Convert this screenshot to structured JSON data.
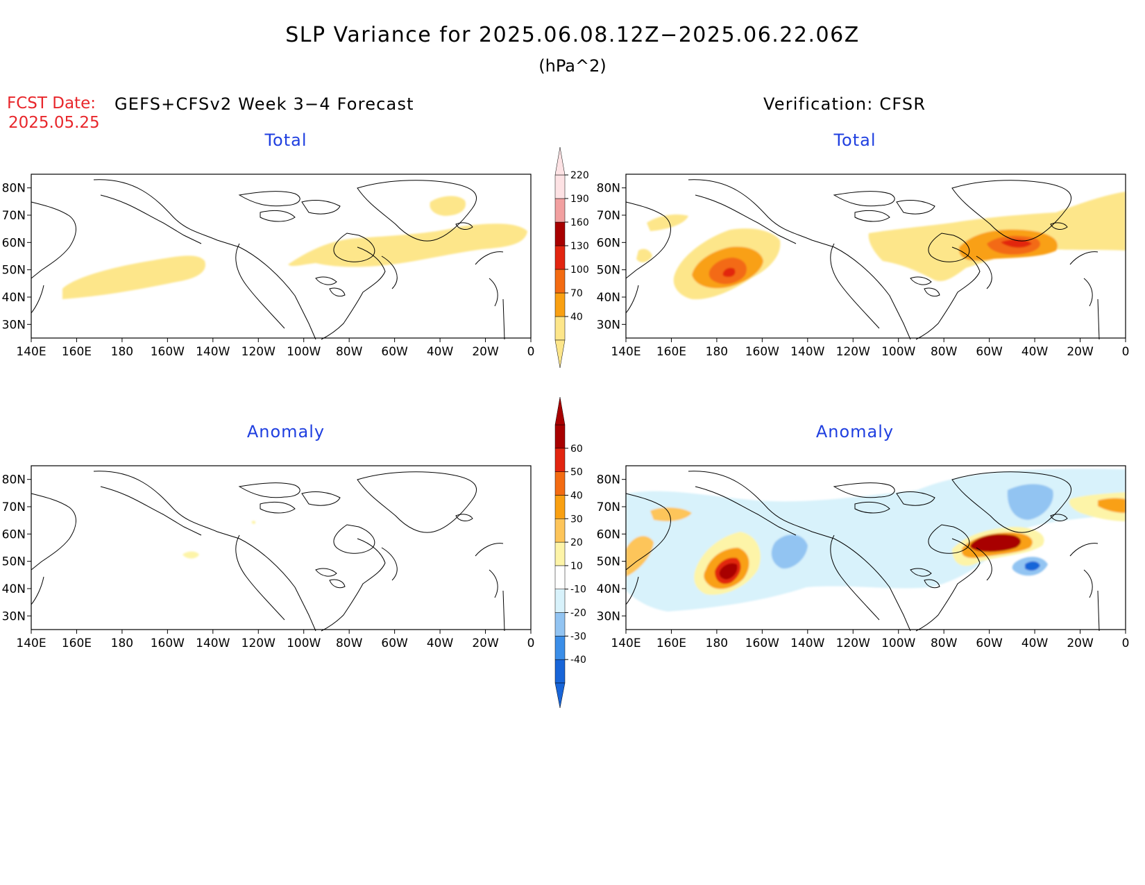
{
  "title": "SLP Variance for 2025.06.08.12Z−2025.06.22.06Z",
  "units": "(hPa^2)",
  "fcst_date_label": "FCST Date:",
  "fcst_date_value": "2025.05.25",
  "left_header": "GEFS+CFSv2 Week 3−4 Forecast",
  "right_header": "Verification: CFSR",
  "panels": [
    {
      "id": "fcst-total",
      "label": "Total"
    },
    {
      "id": "verif-total",
      "label": "Total"
    },
    {
      "id": "fcst-anomaly",
      "label": "Anomaly"
    },
    {
      "id": "verif-anomaly",
      "label": "Anomaly"
    }
  ],
  "lon_ticks": [
    "140E",
    "160E",
    "180",
    "160W",
    "140W",
    "120W",
    "100W",
    "80W",
    "60W",
    "40W",
    "20W",
    "0"
  ],
  "lat_ticks": [
    "80N",
    "70N",
    "60N",
    "50N",
    "40N",
    "30N"
  ],
  "map_extent": {
    "lon_min": 140,
    "lon_max": 360,
    "lat_min": 25,
    "lat_max": 85
  },
  "total_colorbar": {
    "levels": [
      "40",
      "70",
      "100",
      "130",
      "160",
      "190",
      "220"
    ],
    "colors": [
      "#fde68a",
      "#f9a012",
      "#f36b12",
      "#e22510",
      "#a80000",
      "#f2a0a0",
      "#fde2e4"
    ]
  },
  "anomaly_colorbar": {
    "levels": [
      "-40",
      "-30",
      "-20",
      "-10",
      "10",
      "20",
      "30",
      "40",
      "50",
      "60"
    ],
    "colors": [
      "#1865d8",
      "#3b8ee8",
      "#92c4f2",
      "#d8f2fb",
      "#ffffff",
      "#fdf4a8",
      "#fdc55a",
      "#f9a012",
      "#f36b12",
      "#e22510",
      "#a80000"
    ]
  },
  "colors": {
    "title_text": "#000000",
    "panel_label": "#1f3fe0",
    "fcst_date": "#e8262b",
    "coastline": "#000000"
  }
}
